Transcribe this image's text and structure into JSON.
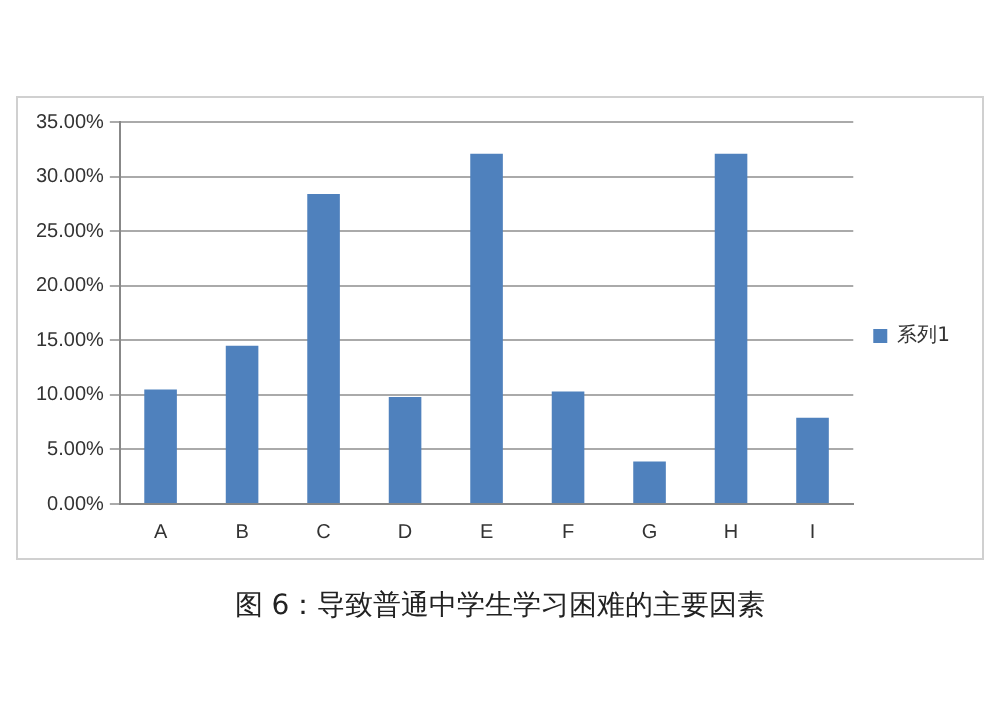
{
  "chart_data": {
    "type": "bar",
    "categories": [
      "A",
      "B",
      "C",
      "D",
      "E",
      "F",
      "G",
      "H",
      "I"
    ],
    "series": [
      {
        "name": "系列1",
        "color": "#4f81bd",
        "values": [
          10.5,
          14.5,
          28.4,
          9.8,
          32.1,
          10.3,
          3.9,
          32.1,
          7.9
        ]
      }
    ],
    "ylim": [
      0,
      35
    ],
    "yticks": [
      {
        "value": 0,
        "label": "0.00%"
      },
      {
        "value": 5,
        "label": "5.00%"
      },
      {
        "value": 10,
        "label": "10.00%"
      },
      {
        "value": 15,
        "label": "15.00%"
      },
      {
        "value": 20,
        "label": "20.00%"
      },
      {
        "value": 25,
        "label": "25.00%"
      },
      {
        "value": 30,
        "label": "30.00%"
      },
      {
        "value": 35,
        "label": "35.00%"
      }
    ],
    "grid": "y",
    "legend": "right",
    "annotations": [
      "图 6：导致普通中学生学习困难的主要因素"
    ]
  }
}
